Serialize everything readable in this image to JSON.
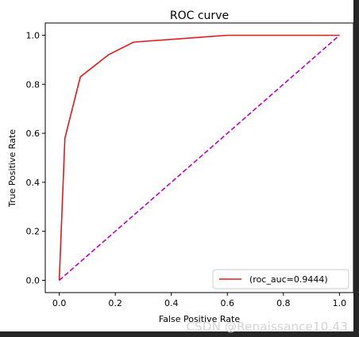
{
  "chart_data": {
    "type": "line",
    "title": "ROC curve",
    "xlabel": "False Positive Rate",
    "ylabel": "True Positive Rate",
    "xlim": [
      -0.05,
      1.05
    ],
    "ylim": [
      -0.05,
      1.05
    ],
    "xticks": [
      0.0,
      0.2,
      0.4,
      0.6,
      0.8,
      1.0
    ],
    "yticks": [
      0.0,
      0.2,
      0.4,
      0.6,
      0.8,
      1.0
    ],
    "xtick_labels": [
      "0.0",
      "0.2",
      "0.4",
      "0.6",
      "0.8",
      "1.0"
    ],
    "ytick_labels": [
      "0.0",
      "0.2",
      "0.4",
      "0.6",
      "0.8",
      "1.0"
    ],
    "grid": false,
    "legend_position": "lower right",
    "series": [
      {
        "name": "(roc_auc=0.9444)",
        "color": "#e41a1c",
        "style": "solid",
        "x": [
          0.0,
          0.02,
          0.075,
          0.175,
          0.265,
          0.6,
          1.0
        ],
        "y": [
          0.0,
          0.58,
          0.83,
          0.92,
          0.972,
          1.0,
          1.0
        ]
      },
      {
        "color": "#bf00bf",
        "style": "dashed",
        "x": [
          0.0,
          1.0
        ],
        "y": [
          0.0,
          1.0
        ]
      }
    ]
  },
  "watermark": "CSDN @Renaissance10.43"
}
